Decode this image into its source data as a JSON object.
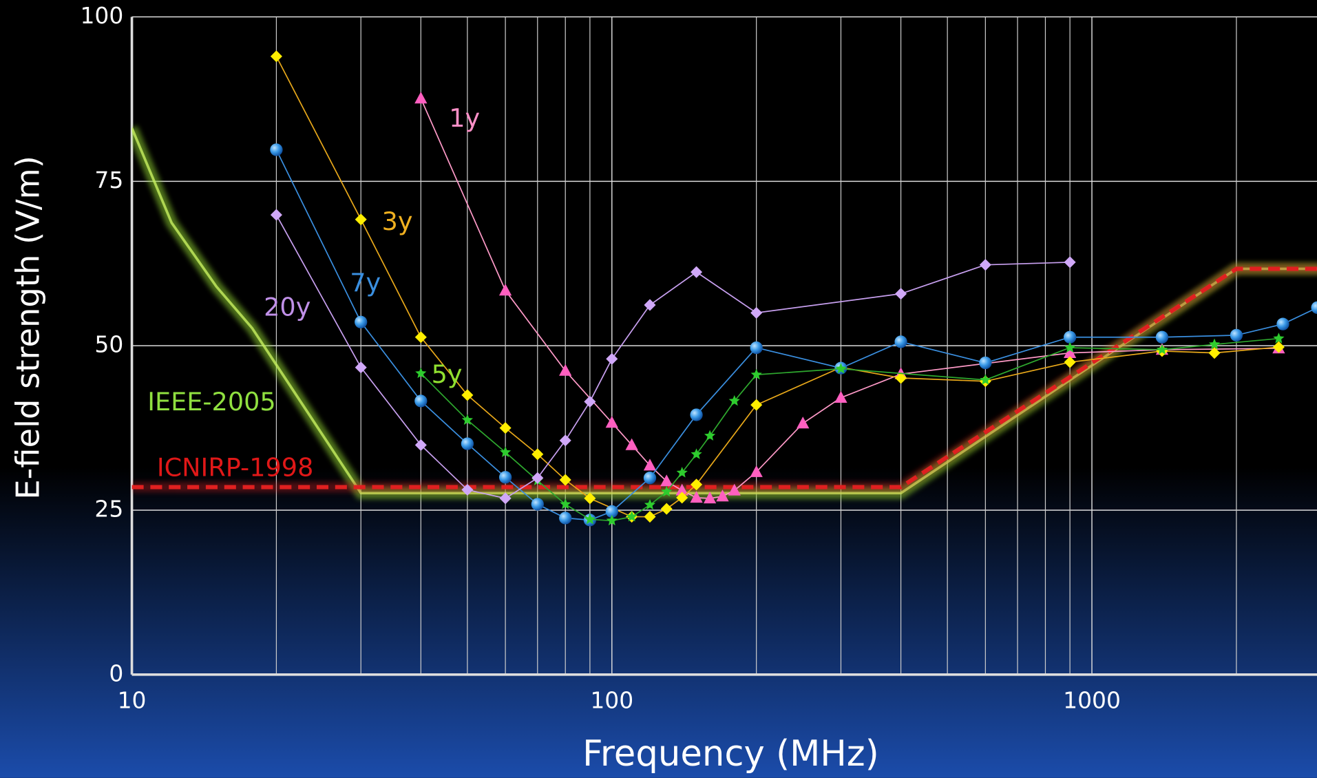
{
  "chart_data": {
    "type": "line",
    "x_label": "Frequency (MHz)",
    "y_label": "E-field strength (V/m)",
    "xscale": "log",
    "xlim": [
      10,
      3000
    ],
    "ylim": [
      0,
      100
    ],
    "xticks": [
      10,
      100,
      1000
    ],
    "xminor": [
      20,
      30,
      40,
      50,
      60,
      70,
      80,
      90,
      200,
      300,
      400,
      500,
      600,
      700,
      800,
      900,
      2000,
      3000
    ],
    "yticks": [
      0,
      25,
      50,
      75,
      100
    ],
    "grid": true,
    "series": [
      {
        "name": "IEEE-2005",
        "color": "#8fd030",
        "style": "glow",
        "x": [
          10,
          12.1,
          15,
          17.8,
          22.7,
          30,
          400,
          2000,
          3000
        ],
        "values": [
          83.1,
          68.7,
          59,
          52.7,
          41,
          27.6,
          27.6,
          61.7,
          61.7
        ]
      },
      {
        "name": "ICNIRP-1998",
        "color": "#e02020",
        "style": "dashed",
        "x": [
          10,
          400,
          2000,
          3000
        ],
        "values": [
          28.5,
          28.5,
          61.7,
          61.7
        ]
      },
      {
        "name": "1y",
        "color": "#ff9ac8",
        "marker_color": "#ff5fc0",
        "marker": "triangle",
        "x": [
          40,
          60,
          80,
          100,
          110,
          120,
          130,
          140,
          150,
          160,
          170,
          180,
          200,
          250,
          300,
          400,
          900,
          1400,
          2450
        ],
        "values": [
          87.6,
          58.4,
          46.2,
          38.3,
          34.9,
          31.8,
          29.4,
          28,
          26.9,
          26.8,
          27.1,
          28,
          30.8,
          38.2,
          42.1,
          45.7,
          48.9,
          49.4,
          49.6
        ]
      },
      {
        "name": "3y",
        "color": "#e8a81a",
        "marker_color": "#ffee00",
        "marker": "diamond",
        "x": [
          20,
          30,
          40,
          50,
          60,
          70,
          80,
          90,
          110,
          120,
          130,
          140,
          150,
          200,
          300,
          400,
          600,
          900,
          1400,
          1800,
          2450
        ],
        "values": [
          94,
          69.2,
          51.3,
          42.5,
          37.5,
          33.5,
          29.6,
          26.8,
          24,
          24,
          25.2,
          26.9,
          28.9,
          41,
          46.7,
          45.1,
          44.6,
          47.5,
          49.2,
          48.9,
          49.8
        ]
      },
      {
        "name": "7y",
        "color": "#3a8fe0",
        "marker_color": "#3a9ae8",
        "marker": "circle",
        "x": [
          20,
          30,
          40,
          50,
          60,
          70,
          80,
          90,
          100,
          120,
          150,
          200,
          300,
          400,
          600,
          900,
          1400,
          2000,
          2500,
          2950
        ],
        "values": [
          79.8,
          53.6,
          41.6,
          35.1,
          30,
          25.9,
          23.8,
          23.5,
          24.8,
          29.9,
          39.5,
          49.7,
          46.6,
          50.6,
          47.4,
          51.3,
          51.3,
          51.6,
          53.3,
          55.8
        ]
      },
      {
        "name": "5y",
        "color": "#2ea82e",
        "marker_color": "#2ecc2e",
        "marker": "star",
        "x": [
          40,
          50,
          60,
          70,
          80,
          90,
          100,
          110,
          120,
          130,
          140,
          150,
          160,
          180,
          200,
          300,
          600,
          900,
          1400,
          1800,
          2450
        ],
        "values": [
          45.8,
          38.7,
          33.8,
          29.5,
          25.9,
          23.6,
          23.4,
          24,
          25.8,
          27.8,
          30.7,
          33.5,
          36.3,
          41.6,
          45.6,
          46.5,
          44.8,
          49.7,
          49.4,
          50.2,
          51.1
        ]
      },
      {
        "name": "20y",
        "color": "#c8a0f0",
        "marker_color": "#d0a8f8",
        "marker": "diamond",
        "x": [
          20,
          30,
          40,
          50,
          60,
          70,
          80,
          90,
          100,
          120,
          150,
          200,
          400,
          600,
          900
        ],
        "values": [
          69.9,
          46.7,
          34.9,
          28.1,
          26.8,
          29.9,
          35.6,
          41.5,
          48,
          56.2,
          61.2,
          55,
          57.9,
          62.3,
          62.7
        ]
      }
    ]
  }
}
